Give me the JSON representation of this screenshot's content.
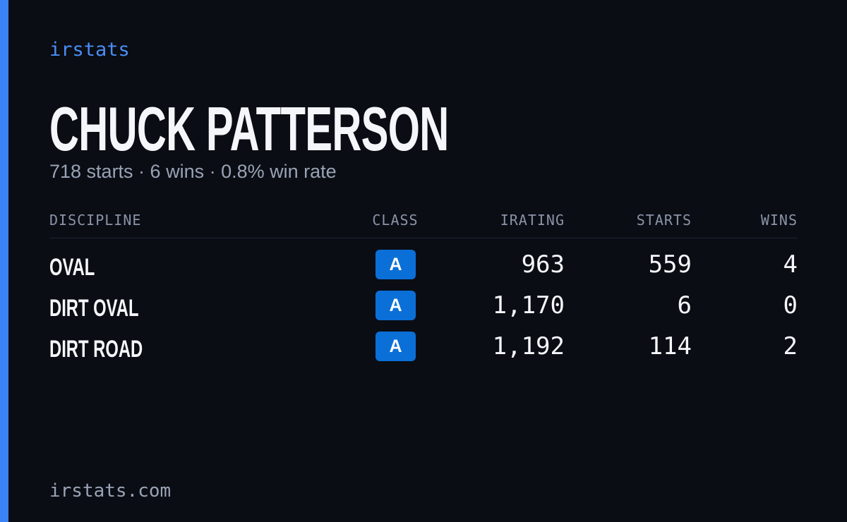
{
  "brand": "irstats",
  "driver": {
    "name": "CHUCK PATTERSON",
    "summary": "718 starts · 6 wins · 0.8% win rate"
  },
  "table": {
    "headers": [
      "DISCIPLINE",
      "CLASS",
      "IRATING",
      "STARTS",
      "WINS"
    ],
    "rows": [
      [
        "OVAL",
        "A",
        "963",
        "559",
        "4"
      ],
      [
        "DIRT OVAL",
        "A",
        "1,170",
        "6",
        "0"
      ],
      [
        "DIRT ROAD",
        "A",
        "1,192",
        "114",
        "2"
      ]
    ]
  },
  "footer": "irstats.com"
}
